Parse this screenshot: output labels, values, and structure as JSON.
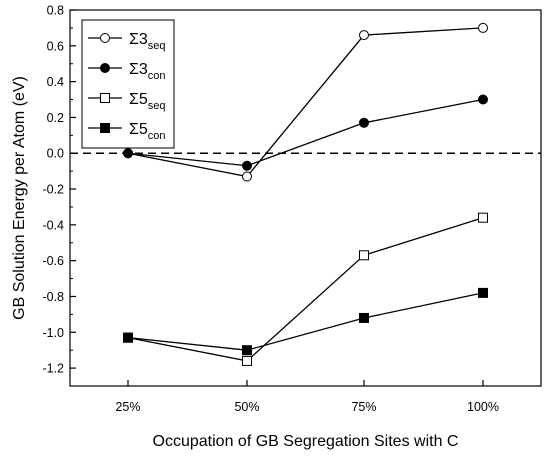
{
  "chart_data": {
    "type": "line",
    "categories": [
      "25%",
      "50%",
      "75%",
      "100%"
    ],
    "xlabel": "Occupation of GB Segregation Sites with C",
    "ylabel": "GB Solution Energy per Atom (eV)",
    "ylim": [
      -1.3,
      0.8
    ],
    "yticks": [
      0.8,
      0.6,
      0.4,
      0.2,
      0.0,
      -0.2,
      -0.4,
      -0.6,
      -0.8,
      -1.0,
      -1.2
    ],
    "ytick_labels": [
      "0.8",
      "0.6",
      "0.4",
      "0.2",
      "0.0",
      "-0.2",
      "-0.4",
      "-0.6",
      "-0.8",
      "-1.0",
      "-1.2"
    ],
    "reference_line": {
      "y": 0.0,
      "style": "dashed"
    },
    "legend_position": "top-left",
    "grid": false,
    "series": [
      {
        "name": "Σ3",
        "subscript": "seq",
        "marker": "circle",
        "filled": false,
        "values": [
          0.0,
          -0.13,
          0.66,
          0.7
        ]
      },
      {
        "name": "Σ3",
        "subscript": "con",
        "marker": "circle",
        "filled": true,
        "values": [
          0.0,
          -0.07,
          0.17,
          0.3
        ]
      },
      {
        "name": "Σ5",
        "subscript": "seq",
        "marker": "square",
        "filled": false,
        "values": [
          -1.03,
          -1.16,
          -0.57,
          -0.36
        ]
      },
      {
        "name": "Σ5",
        "subscript": "con",
        "marker": "square",
        "filled": true,
        "values": [
          -1.03,
          -1.1,
          -0.92,
          -0.78
        ]
      }
    ]
  }
}
